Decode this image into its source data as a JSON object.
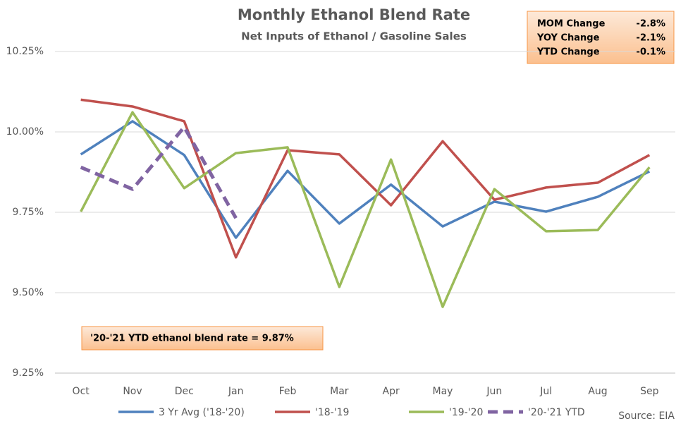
{
  "chart_data": {
    "type": "line",
    "title": "Monthly Ethanol Blend Rate",
    "subtitle": "Net Inputs of Ethanol / Gasoline Sales",
    "categories": [
      "Oct",
      "Nov",
      "Dec",
      "Jan",
      "Feb",
      "Mar",
      "Apr",
      "May",
      "Jun",
      "Jul",
      "Aug",
      "Sep"
    ],
    "series": [
      {
        "name": "3 Yr Avg ('18-'20)",
        "color": "#4f81bd",
        "dashed": false,
        "values": [
          9.93,
          10.033,
          9.928,
          9.671,
          9.879,
          9.715,
          9.836,
          9.706,
          9.783,
          9.752,
          9.798,
          9.877
        ]
      },
      {
        "name": "'18-'19",
        "color": "#c0504d",
        "dashed": false,
        "values": [
          10.1,
          10.079,
          10.033,
          9.61,
          9.943,
          9.93,
          9.772,
          9.971,
          9.789,
          9.827,
          9.842,
          9.928
        ]
      },
      {
        "name": "'19-'20",
        "color": "#9bbb59",
        "dashed": false,
        "values": [
          9.752,
          10.061,
          9.825,
          9.934,
          9.952,
          9.518,
          9.914,
          9.456,
          9.822,
          9.691,
          9.695,
          9.89
        ]
      },
      {
        "name": "'20-'21 YTD",
        "color": "#8064a2",
        "dashed": true,
        "values": [
          9.89,
          9.822,
          10.015,
          9.732,
          null,
          null,
          null,
          null,
          null,
          null,
          null,
          null
        ]
      }
    ],
    "ylim": [
      9.25,
      10.25
    ],
    "yticks": [
      {
        "value": 9.25,
        "label": "9.25%"
      },
      {
        "value": 9.5,
        "label": "9.50%"
      },
      {
        "value": 9.75,
        "label": "9.75%"
      },
      {
        "value": 10.0,
        "label": "10.00%"
      },
      {
        "value": 10.25,
        "label": "10.25%"
      }
    ],
    "grid": true,
    "legend": "bottom",
    "info_box": [
      {
        "label": "MOM Change",
        "value": "-2.8%"
      },
      {
        "label": "YOY Change",
        "value": "-2.1%"
      },
      {
        "label": "YTD Change",
        "value": "-0.1%"
      }
    ],
    "annotation": "'20-'21 YTD ethanol blend rate = 9.87%",
    "source": "Source: EIA"
  }
}
